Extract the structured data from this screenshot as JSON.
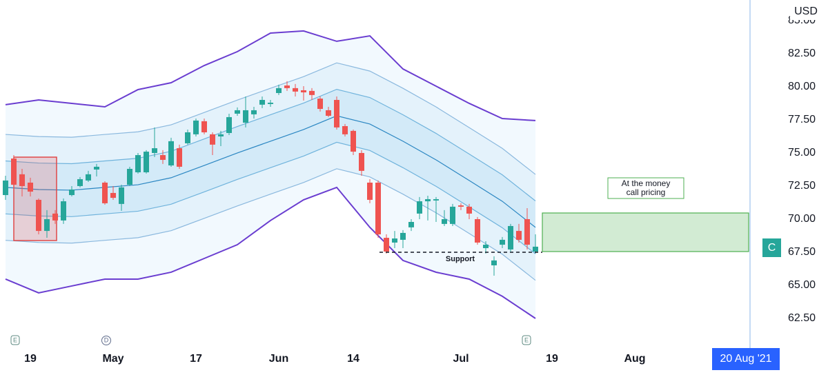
{
  "chart_data": {
    "type": "candlestick",
    "currency": "USD",
    "crosshair_label": "20 Aug '21",
    "event_markers": [
      "E",
      "D",
      "E"
    ],
    "annotations": {
      "support": "Support",
      "call_box": [
        "At the money",
        "call pricing"
      ],
      "badge": "C"
    },
    "up_color": "#26a69a",
    "down_color": "#ef5350",
    "ylim": [
      60.26,
      86.56
    ],
    "yticks": [
      {
        "value": 62.5,
        "label": "62.50"
      },
      {
        "value": 65,
        "label": "65.00"
      },
      {
        "value": 67.5,
        "label": "67.50"
      },
      {
        "value": 70,
        "label": "70.00"
      },
      {
        "value": 72.5,
        "label": "72.50"
      },
      {
        "value": 75,
        "label": "75.00"
      },
      {
        "value": 77.5,
        "label": "77.50"
      },
      {
        "value": 80,
        "label": "80.00"
      },
      {
        "value": 82.5,
        "label": "82.50"
      },
      {
        "value": 85,
        "label": "85.00"
      }
    ],
    "grid": false,
    "categories": [
      null,
      null,
      null,
      "19",
      null,
      null,
      null,
      null,
      null,
      null,
      null,
      null,
      null,
      "May",
      null,
      null,
      null,
      null,
      null,
      null,
      null,
      null,
      null,
      "17",
      null,
      null,
      null,
      null,
      null,
      null,
      null,
      null,
      null,
      "Jun",
      null,
      null,
      null,
      null,
      null,
      null,
      null,
      null,
      "14",
      null,
      null,
      null,
      null,
      null,
      null,
      null,
      null,
      null,
      null,
      null,
      null,
      "Jul",
      null,
      null,
      null,
      null,
      null,
      null,
      null,
      null,
      null,
      null,
      "19",
      null,
      null,
      null,
      null,
      null,
      null,
      null,
      null,
      null,
      "Aug",
      null,
      null,
      null,
      null,
      null,
      null,
      null,
      null,
      null,
      null,
      null,
      null,
      null,
      null,
      null,
      null,
      null
    ],
    "open": [
      71.82,
      74.58,
      73.39,
      72.76,
      71.46,
      69.11,
      70.42,
      69.9,
      71.82,
      72.5,
      72.92,
      73.75,
      72.76,
      71.98,
      71.15,
      72.6,
      73.54,
      73.54,
      75.0,
      74.84,
      74.06,
      75.36,
      75.73,
      76.41,
      77.4,
      76.41,
      76.25,
      76.51,
      77.97,
      77.29,
      77.92,
      78.65,
      78.7,
      79.53,
      80.1,
      79.9,
      79.74,
      79.69,
      79.11,
      78.23,
      79.01,
      77.03,
      76.67,
      75.0,
      72.76,
      72.76,
      68.59,
      68.23,
      68.44,
      69.38,
      70.42,
      71.35,
      71.41,
      69.64,
      69.64,
      71.04,
      70.94,
      70.0,
      67.81,
      66.51,
      68.07,
      67.71,
      69.11,
      70.0,
      67.55,
      null,
      null,
      null,
      null,
      null,
      null,
      null,
      null,
      null,
      null,
      null,
      null,
      null,
      null,
      null,
      null,
      null,
      null,
      null,
      null,
      null,
      null,
      null,
      null,
      null,
      null,
      null,
      null,
      null
    ],
    "high": [
      73.28,
      74.84,
      73.8,
      73.13,
      71.56,
      70.68,
      70.68,
      71.56,
      72.5,
      73.18,
      73.65,
      74.17,
      72.86,
      72.5,
      72.6,
      73.96,
      75.0,
      75.21,
      76.93,
      75.21,
      76.15,
      75.63,
      76.77,
      77.6,
      77.6,
      76.56,
      76.67,
      77.97,
      78.44,
      79.27,
      78.49,
      79.27,
      79.01,
      80.16,
      80.42,
      80.21,
      80.05,
      79.9,
      79.27,
      78.49,
      79.27,
      77.19,
      76.77,
      75.21,
      73.02,
      72.92,
      68.85,
      69.11,
      69.17,
      70.0,
      71.67,
      71.77,
      71.67,
      70.68,
      71.15,
      71.2,
      71.15,
      70.16,
      68.33,
      67.19,
      68.65,
      69.64,
      69.64,
      70.83,
      68.85,
      null,
      null,
      null,
      null,
      null,
      null,
      null,
      null,
      null,
      null,
      null,
      null,
      null,
      null,
      null,
      null,
      null,
      null,
      null,
      null,
      null,
      null,
      null,
      null,
      null,
      null,
      null,
      null,
      null
    ],
    "low": [
      71.46,
      72.24,
      71.72,
      71.72,
      68.85,
      68.59,
      69.64,
      69.64,
      71.72,
      72.4,
      72.81,
      73.23,
      71.09,
      71.46,
      70.63,
      72.5,
      73.44,
      73.44,
      74.69,
      74.17,
      73.96,
      73.8,
      75.63,
      76.25,
      76.41,
      74.84,
      75.52,
      76.35,
      77.81,
      76.93,
      77.6,
      78.39,
      78.49,
      79.38,
      79.69,
      79.27,
      78.96,
      79.01,
      78.13,
      77.71,
      76.77,
      76.25,
      74.84,
      73.28,
      71.2,
      68.59,
      67.4,
      67.81,
      67.81,
      69.11,
      70.0,
      69.9,
      69.79,
      69.48,
      69.48,
      70.68,
      70.0,
      68.07,
      67.4,
      65.73,
      67.81,
      67.55,
      68.23,
      67.71,
      67.4,
      null,
      null,
      null,
      null,
      null,
      null,
      null,
      null,
      null,
      null,
      null,
      null,
      null,
      null,
      null,
      null,
      null,
      null,
      null,
      null,
      null,
      null,
      null,
      null,
      null,
      null,
      null,
      null,
      null
    ],
    "close": [
      72.92,
      72.6,
      72.5,
      72.08,
      69.11,
      70.0,
      69.9,
      71.35,
      72.24,
      73.02,
      73.39,
      73.96,
      71.2,
      71.61,
      72.4,
      73.8,
      74.84,
      75.1,
      75.36,
      74.48,
      75.89,
      73.96,
      76.56,
      77.45,
      76.56,
      75.63,
      76.41,
      77.71,
      78.23,
      78.23,
      78.23,
      79.01,
      78.8,
      79.9,
      79.9,
      79.64,
      79.58,
      79.38,
      78.33,
      77.81,
      76.93,
      76.41,
      75.1,
      73.65,
      71.46,
      68.85,
      67.55,
      68.54,
      68.96,
      69.79,
      71.35,
      71.51,
      71.51,
      70.0,
      70.94,
      70.94,
      70.42,
      68.23,
      68.07,
      66.88,
      68.44,
      69.48,
      68.44,
      68.07,
      67.92,
      null,
      null,
      null,
      null,
      null,
      null,
      null,
      null,
      null,
      null,
      null,
      null,
      null,
      null,
      null,
      null,
      null,
      null,
      null,
      null,
      null,
      null,
      null,
      null,
      null,
      null,
      null,
      null,
      null
    ],
    "band_x": [
      0,
      4,
      8,
      12,
      16,
      20,
      24,
      28,
      32,
      36,
      40,
      44,
      48,
      52,
      56,
      60,
      64
    ],
    "bands": [
      {
        "color": "#6a3dd0",
        "values": [
          78.65,
          79.01,
          78.75,
          78.49,
          79.79,
          80.31,
          81.61,
          82.66,
          84.06,
          84.22,
          83.44,
          83.85,
          81.35,
          80.05,
          78.75,
          77.6,
          77.45
        ]
      },
      {
        "color": "#8ab8de",
        "values": [
          76.4,
          76.24,
          76.19,
          76.4,
          76.6,
          77.13,
          78.06,
          79.0,
          79.89,
          80.77,
          81.81,
          81.19,
          79.89,
          78.48,
          76.92,
          75.35,
          73.38
        ]
      },
      {
        "color": "#6fb3dc",
        "values": [
          74.4,
          74.24,
          74.19,
          74.4,
          74.6,
          75.13,
          76.06,
          77.0,
          77.89,
          78.77,
          79.81,
          79.19,
          77.89,
          76.48,
          74.92,
          73.35,
          71.38
        ]
      },
      {
        "color": "#2a86c2",
        "values": [
          72.4,
          72.24,
          72.19,
          72.4,
          72.6,
          73.13,
          74.06,
          75.0,
          75.89,
          76.77,
          77.81,
          77.19,
          75.89,
          74.48,
          72.92,
          71.35,
          69.38
        ]
      },
      {
        "color": "#6fb3dc",
        "values": [
          70.4,
          70.24,
          70.19,
          70.4,
          70.6,
          71.13,
          72.06,
          73.0,
          73.89,
          74.77,
          75.81,
          75.19,
          73.89,
          72.48,
          70.92,
          69.35,
          67.38
        ]
      },
      {
        "color": "#8ab8de",
        "values": [
          68.4,
          68.24,
          68.19,
          68.4,
          68.6,
          69.13,
          70.06,
          71.0,
          71.89,
          72.77,
          73.81,
          73.19,
          71.89,
          70.48,
          68.92,
          67.35,
          65.38
        ]
      },
      {
        "color": "#6a3dd0",
        "values": [
          65.47,
          64.43,
          64.95,
          65.47,
          65.47,
          65.99,
          67.03,
          68.07,
          69.9,
          71.46,
          72.4,
          69.38,
          66.88,
          65.99,
          65.47,
          64.17,
          62.5
        ]
      }
    ]
  }
}
